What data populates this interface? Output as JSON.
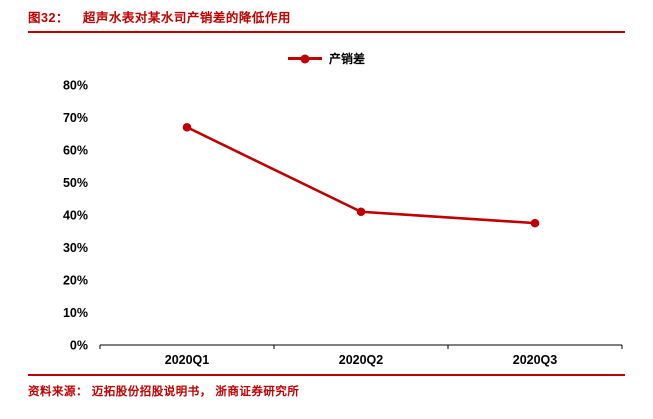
{
  "header": {
    "figure_label": "图32：",
    "title": "超声水表对某水司产销差的降低作用"
  },
  "footer": {
    "source": "资料来源： 迈拓股份招股说明书， 浙商证券研究所"
  },
  "colors": {
    "accent": "#c00000",
    "axis": "#000000",
    "tick_text": "#000000"
  },
  "chart_data": {
    "type": "line",
    "series_name": "产销差",
    "categories": [
      "2020Q1",
      "2020Q2",
      "2020Q3"
    ],
    "values": [
      67,
      41,
      37.5
    ],
    "title": "超声水表对某水司产销差的降低作用",
    "xlabel": "",
    "ylabel": "",
    "ylim": [
      0,
      80
    ],
    "yticks": [
      0,
      10,
      20,
      30,
      40,
      50,
      60,
      70,
      80
    ],
    "ytick_labels": [
      "0%",
      "10%",
      "20%",
      "30%",
      "40%",
      "50%",
      "60%",
      "70%",
      "80%"
    ],
    "grid": false,
    "legend_position": "top-center",
    "line_color": "#c00000",
    "marker": "circle"
  }
}
